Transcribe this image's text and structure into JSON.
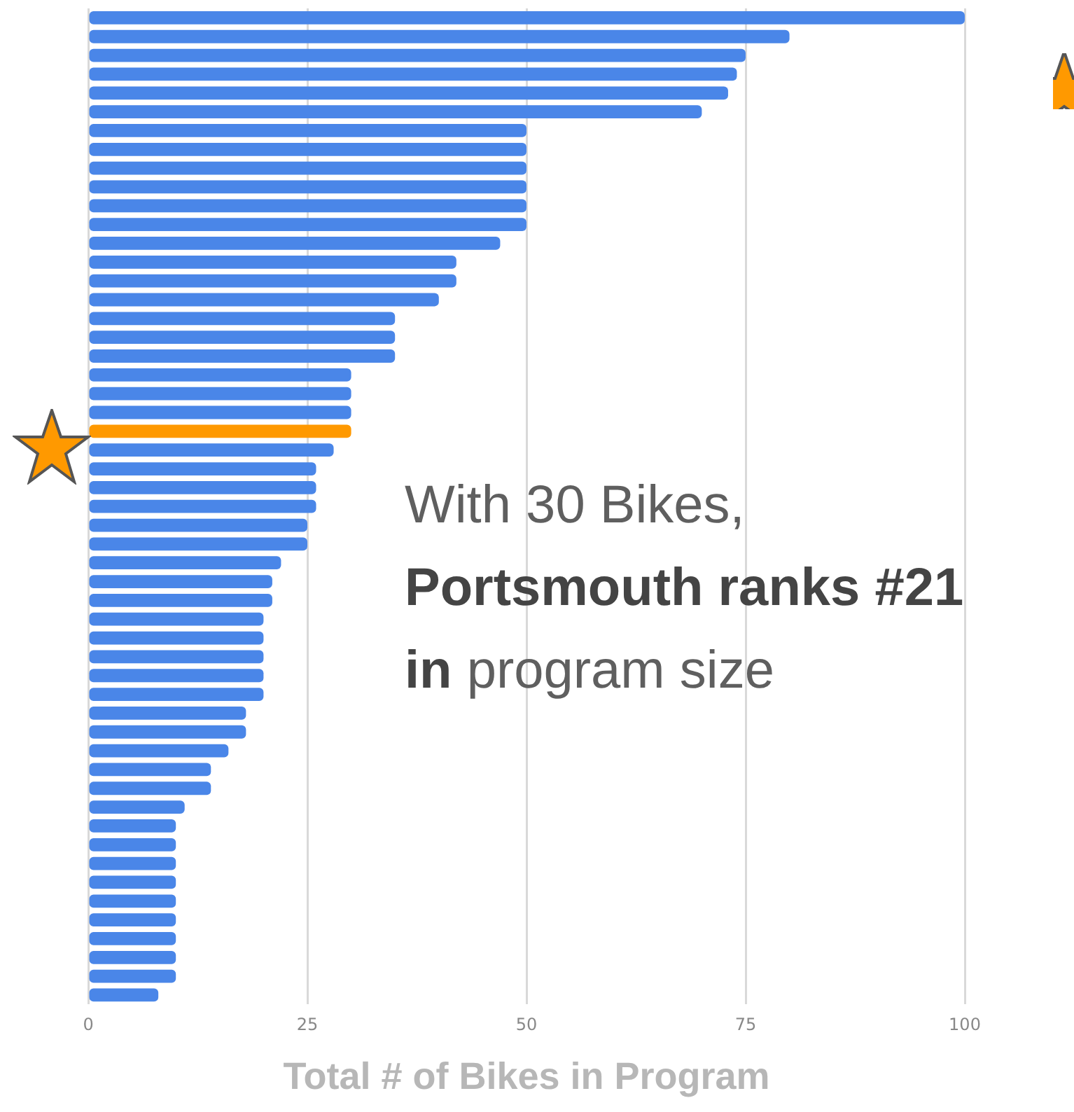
{
  "chart_data": {
    "type": "bar",
    "orientation": "horizontal",
    "xlabel": "Total # of Bikes in Program",
    "categories": [
      null,
      null,
      null,
      null,
      null,
      null,
      null,
      null,
      null,
      null,
      null,
      null,
      null,
      null,
      null,
      null,
      null,
      null,
      null,
      null,
      null,
      null,
      null,
      null,
      null,
      null,
      null,
      null,
      null,
      null,
      null,
      null,
      null,
      null,
      null,
      null,
      null,
      null,
      null,
      null,
      null,
      null,
      null,
      null,
      null,
      null,
      null,
      null,
      null,
      null,
      null,
      null,
      null
    ],
    "values": [
      100,
      80,
      75,
      74,
      73,
      70,
      50,
      50,
      50,
      50,
      50,
      50,
      47,
      42,
      42,
      40,
      35,
      35,
      35,
      30,
      30,
      30,
      30,
      28,
      26,
      26,
      26,
      25,
      25,
      22,
      21,
      21,
      20,
      20,
      20,
      20,
      20,
      18,
      18,
      16,
      14,
      14,
      11,
      10,
      10,
      10,
      10,
      10,
      10,
      10,
      10,
      10,
      8
    ],
    "colors": [
      "#4a86e8",
      "#4a86e8",
      "#4a86e8",
      "#4a86e8",
      "#4a86e8",
      "#4a86e8",
      "#4a86e8",
      "#4a86e8",
      "#4a86e8",
      "#4a86e8",
      "#4a86e8",
      "#4a86e8",
      "#4a86e8",
      "#4a86e8",
      "#4a86e8",
      "#4a86e8",
      "#4a86e8",
      "#4a86e8",
      "#4a86e8",
      "#4a86e8",
      "#4a86e8",
      "#4a86e8",
      "#ff9900",
      "#4a86e8",
      "#4a86e8",
      "#4a86e8",
      "#4a86e8",
      "#4a86e8",
      "#4a86e8",
      "#4a86e8",
      "#4a86e8",
      "#4a86e8",
      "#4a86e8",
      "#4a86e8",
      "#4a86e8",
      "#4a86e8",
      "#4a86e8",
      "#4a86e8",
      "#4a86e8",
      "#4a86e8",
      "#4a86e8",
      "#4a86e8",
      "#4a86e8",
      "#4a86e8",
      "#4a86e8",
      "#4a86e8",
      "#4a86e8",
      "#4a86e8",
      "#4a86e8",
      "#4a86e8",
      "#4a86e8",
      "#4a86e8",
      "#4a86e8"
    ],
    "xlim": [
      0,
      100
    ],
    "xticks": [
      0,
      25,
      50,
      75,
      100
    ],
    "grid": "x",
    "legend": false,
    "annotations": [
      "With 30 Bikes,",
      "Portsmouth ranks #21",
      "in program size"
    ]
  }
}
